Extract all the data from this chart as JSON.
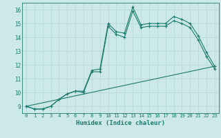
{
  "xlabel": "Humidex (Indice chaleur)",
  "ylabel": "",
  "bg_color": "#cde8e8",
  "grid_color": "#b8d8d8",
  "line_color": "#1a7a6e",
  "xlim": [
    -0.5,
    23.5
  ],
  "ylim": [
    8.5,
    16.5
  ],
  "yticks": [
    9,
    10,
    11,
    12,
    13,
    14,
    15,
    16
  ],
  "xticks": [
    0,
    1,
    2,
    3,
    4,
    5,
    6,
    7,
    8,
    9,
    10,
    11,
    12,
    13,
    14,
    15,
    16,
    17,
    18,
    19,
    20,
    21,
    22,
    23
  ],
  "line1_x": [
    0,
    1,
    2,
    3,
    4,
    5,
    6,
    7,
    8,
    9,
    10,
    11,
    12,
    13,
    14,
    15,
    16,
    17,
    18,
    19,
    20,
    21,
    22,
    23
  ],
  "line1_y": [
    9.0,
    8.8,
    8.8,
    9.0,
    9.5,
    9.9,
    10.1,
    10.1,
    11.6,
    11.7,
    15.0,
    14.4,
    14.3,
    16.2,
    14.9,
    15.0,
    15.0,
    15.0,
    15.5,
    15.3,
    15.0,
    14.1,
    12.9,
    11.9
  ],
  "line2_x": [
    0,
    1,
    2,
    3,
    4,
    5,
    6,
    7,
    8,
    9,
    10,
    11,
    12,
    13,
    14,
    15,
    16,
    17,
    18,
    19,
    20,
    21,
    22,
    23
  ],
  "line2_y": [
    9.0,
    8.8,
    8.8,
    9.0,
    9.5,
    9.9,
    10.1,
    10.0,
    11.5,
    11.5,
    14.8,
    14.2,
    14.0,
    15.9,
    14.7,
    14.8,
    14.8,
    14.8,
    15.2,
    15.0,
    14.7,
    13.8,
    12.6,
    11.7
  ],
  "line3_x": [
    0,
    23
  ],
  "line3_y": [
    9.0,
    11.9
  ]
}
